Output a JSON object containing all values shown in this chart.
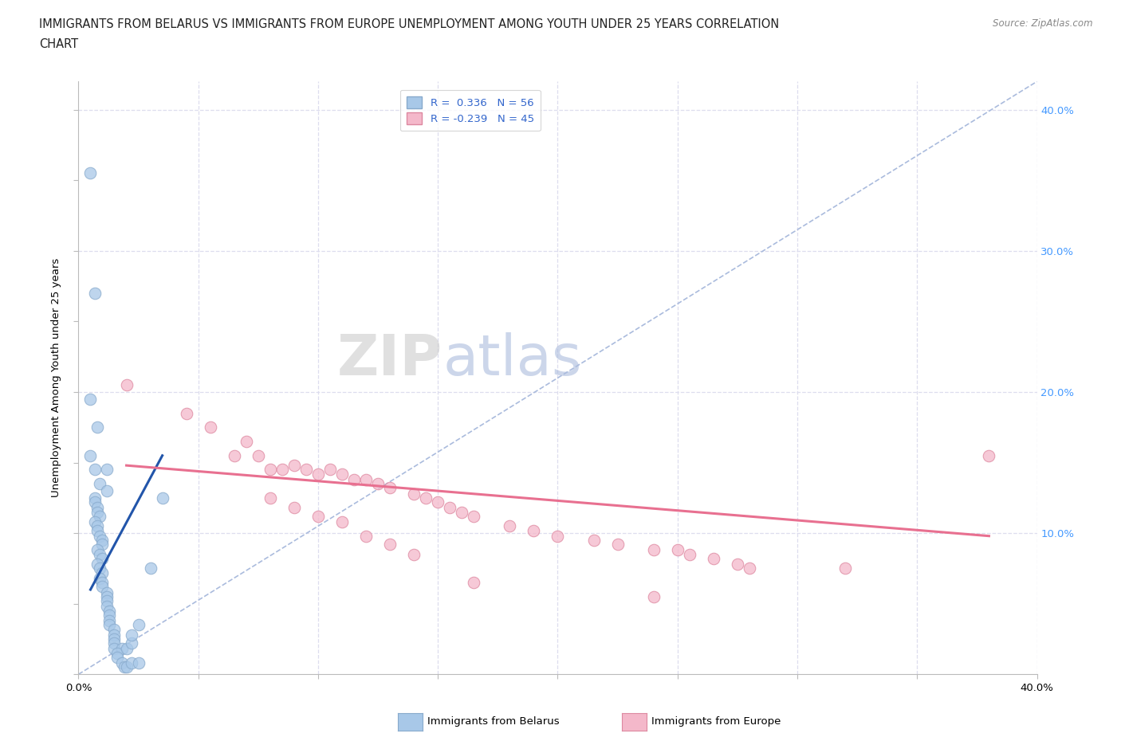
{
  "title_line1": "IMMIGRANTS FROM BELARUS VS IMMIGRANTS FROM EUROPE UNEMPLOYMENT AMONG YOUTH UNDER 25 YEARS CORRELATION",
  "title_line2": "CHART",
  "source_text": "Source: ZipAtlas.com",
  "ylabel": "Unemployment Among Youth under 25 years",
  "xlim": [
    0.0,
    0.4
  ],
  "ylim": [
    0.0,
    0.42
  ],
  "watermark_zip": "ZIP",
  "watermark_atlas": "atlas",
  "color_belarus": "#a8c8e8",
  "color_europe": "#f4b8ca",
  "line_color_belarus": "#2255aa",
  "line_color_europe": "#e87090",
  "dashed_color": "#aabbdd",
  "grid_color": "#ddddee",
  "scatter_belarus": [
    [
      0.005,
      0.355
    ],
    [
      0.007,
      0.27
    ],
    [
      0.005,
      0.195
    ],
    [
      0.008,
      0.175
    ],
    [
      0.005,
      0.155
    ],
    [
      0.007,
      0.145
    ],
    [
      0.012,
      0.145
    ],
    [
      0.009,
      0.135
    ],
    [
      0.012,
      0.13
    ],
    [
      0.007,
      0.125
    ],
    [
      0.007,
      0.122
    ],
    [
      0.008,
      0.118
    ],
    [
      0.008,
      0.115
    ],
    [
      0.009,
      0.112
    ],
    [
      0.007,
      0.108
    ],
    [
      0.008,
      0.105
    ],
    [
      0.008,
      0.102
    ],
    [
      0.009,
      0.098
    ],
    [
      0.01,
      0.095
    ],
    [
      0.01,
      0.092
    ],
    [
      0.008,
      0.088
    ],
    [
      0.009,
      0.085
    ],
    [
      0.01,
      0.082
    ],
    [
      0.008,
      0.078
    ],
    [
      0.009,
      0.075
    ],
    [
      0.01,
      0.072
    ],
    [
      0.009,
      0.068
    ],
    [
      0.01,
      0.065
    ],
    [
      0.01,
      0.062
    ],
    [
      0.012,
      0.058
    ],
    [
      0.012,
      0.055
    ],
    [
      0.012,
      0.052
    ],
    [
      0.012,
      0.048
    ],
    [
      0.013,
      0.045
    ],
    [
      0.013,
      0.042
    ],
    [
      0.013,
      0.038
    ],
    [
      0.013,
      0.035
    ],
    [
      0.015,
      0.032
    ],
    [
      0.015,
      0.028
    ],
    [
      0.015,
      0.025
    ],
    [
      0.015,
      0.022
    ],
    [
      0.015,
      0.018
    ],
    [
      0.018,
      0.018
    ],
    [
      0.016,
      0.015
    ],
    [
      0.016,
      0.012
    ],
    [
      0.018,
      0.008
    ],
    [
      0.019,
      0.005
    ],
    [
      0.02,
      0.005
    ],
    [
      0.022,
      0.008
    ],
    [
      0.025,
      0.008
    ],
    [
      0.02,
      0.018
    ],
    [
      0.022,
      0.022
    ],
    [
      0.022,
      0.028
    ],
    [
      0.025,
      0.035
    ],
    [
      0.03,
      0.075
    ],
    [
      0.035,
      0.125
    ]
  ],
  "scatter_europe": [
    [
      0.02,
      0.205
    ],
    [
      0.045,
      0.185
    ],
    [
      0.055,
      0.175
    ],
    [
      0.065,
      0.155
    ],
    [
      0.07,
      0.165
    ],
    [
      0.075,
      0.155
    ],
    [
      0.08,
      0.145
    ],
    [
      0.085,
      0.145
    ],
    [
      0.09,
      0.148
    ],
    [
      0.095,
      0.145
    ],
    [
      0.1,
      0.142
    ],
    [
      0.105,
      0.145
    ],
    [
      0.11,
      0.142
    ],
    [
      0.115,
      0.138
    ],
    [
      0.12,
      0.138
    ],
    [
      0.125,
      0.135
    ],
    [
      0.13,
      0.132
    ],
    [
      0.14,
      0.128
    ],
    [
      0.145,
      0.125
    ],
    [
      0.15,
      0.122
    ],
    [
      0.155,
      0.118
    ],
    [
      0.16,
      0.115
    ],
    [
      0.165,
      0.112
    ],
    [
      0.18,
      0.105
    ],
    [
      0.19,
      0.102
    ],
    [
      0.2,
      0.098
    ],
    [
      0.215,
      0.095
    ],
    [
      0.225,
      0.092
    ],
    [
      0.24,
      0.088
    ],
    [
      0.25,
      0.088
    ],
    [
      0.255,
      0.085
    ],
    [
      0.265,
      0.082
    ],
    [
      0.275,
      0.078
    ],
    [
      0.28,
      0.075
    ],
    [
      0.08,
      0.125
    ],
    [
      0.09,
      0.118
    ],
    [
      0.1,
      0.112
    ],
    [
      0.11,
      0.108
    ],
    [
      0.12,
      0.098
    ],
    [
      0.13,
      0.092
    ],
    [
      0.14,
      0.085
    ],
    [
      0.165,
      0.065
    ],
    [
      0.24,
      0.055
    ],
    [
      0.38,
      0.155
    ],
    [
      0.32,
      0.075
    ]
  ],
  "trendline_belarus": [
    [
      0.005,
      0.06
    ],
    [
      0.035,
      0.155
    ]
  ],
  "trendline_europe": [
    [
      0.02,
      0.148
    ],
    [
      0.38,
      0.098
    ]
  ],
  "dashed_line": [
    [
      0.0,
      0.0
    ],
    [
      0.4,
      0.42
    ]
  ],
  "background_color": "#ffffff"
}
